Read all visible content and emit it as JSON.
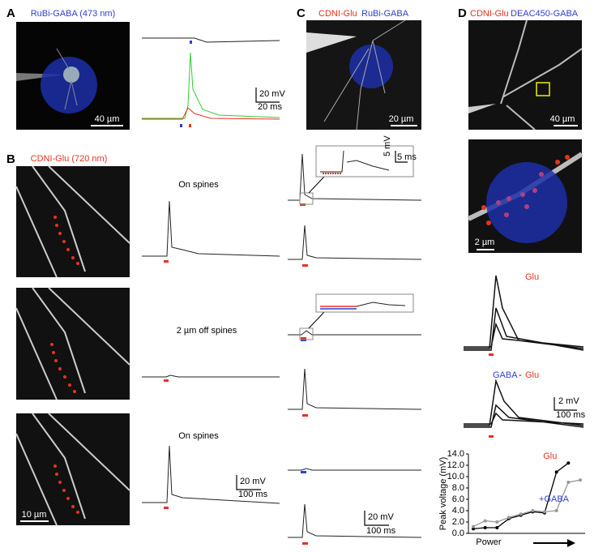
{
  "panels": {
    "A": {
      "label": "A",
      "title": "RuBi-GABA (473 nm)",
      "scale_image": "40 µm",
      "scale_v": "20 mV",
      "scale_t": "20 ms"
    },
    "B": {
      "label": "B",
      "title": "CDNI-Glu (720 nm)",
      "conditions": [
        "On spines",
        "2 µm off spines",
        "On spines"
      ],
      "scale_image": "10 µm",
      "scale_v": "20 mV",
      "scale_t": "100 ms"
    },
    "C": {
      "label": "C",
      "title_glu": "CDNI-Glu",
      "title_gaba": "RuBi-GABA",
      "scale_image": "20 µm",
      "inset_v": "5 mV",
      "inset_t": "5 ms",
      "scale_v": "20 mV",
      "scale_t": "100 ms"
    },
    "D": {
      "label": "D",
      "title_glu": "CDNI-Glu",
      "title_gaba": "DEAC450-GABA",
      "scale_image": "40 µm",
      "scale_image_zoom": "2 µm",
      "trace_glu": "Glu",
      "trace_gaba": "GABA",
      "trace_sep": "-",
      "trace_glu2": "Glu",
      "scale_v": "2 mV",
      "scale_t": "100 ms"
    }
  },
  "chart_data": {
    "type": "line",
    "ylabel": "Peak voltage (mV)",
    "xlabel": "Power",
    "categories": [
      null,
      null,
      null,
      null,
      null,
      null,
      null,
      null,
      null,
      null
    ],
    "series": [
      {
        "name": "Glu",
        "color": "#000000",
        "label_color": "#e8321e",
        "values": [
          0.8,
          1.0,
          1.0,
          2.6,
          3.2,
          3.8,
          3.6,
          10.8,
          12.4,
          null
        ]
      },
      {
        "name": "+GABA",
        "color": "#999999",
        "label_color": "#2f3fd0",
        "values": [
          1.2,
          2.2,
          2.0,
          2.8,
          3.4,
          4.0,
          3.8,
          4.0,
          9.0,
          9.4
        ]
      }
    ],
    "ylim": [
      0,
      14
    ],
    "yticks": [
      {
        "value": 0,
        "label": "0.0"
      },
      {
        "value": 2,
        "label": "2.0"
      },
      {
        "value": 4,
        "label": "4.0"
      },
      {
        "value": 6,
        "label": "6.0"
      },
      {
        "value": 8,
        "label": "8.0"
      },
      {
        "value": 10,
        "label": "10.0"
      },
      {
        "value": 12,
        "label": "12.0"
      },
      {
        "value": 14,
        "label": "14.0"
      }
    ]
  }
}
